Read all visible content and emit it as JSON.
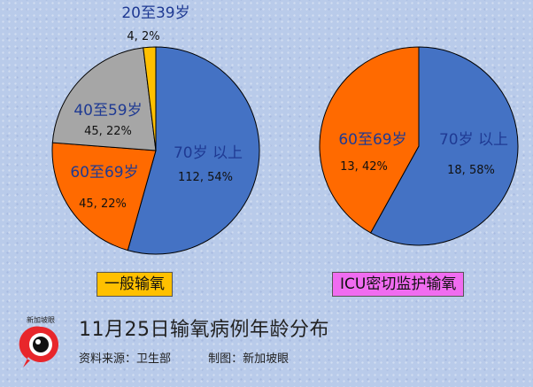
{
  "chart_data": [
    {
      "type": "pie",
      "title": "一般输氧",
      "slices": [
        {
          "label": "70岁 以上",
          "value": 112,
          "percent": "54%",
          "value_label": "112, 54%",
          "color": "#4472c4"
        },
        {
          "label": "60至69岁",
          "value": 45,
          "percent": "22%",
          "value_label": "45, 22%",
          "color": "#ff6a00"
        },
        {
          "label": "40至59岁",
          "value": 45,
          "percent": "22%",
          "value_label": "45, 22%",
          "color": "#a6a6a6"
        },
        {
          "label": "20至39岁",
          "value": 4,
          "percent": "2%",
          "value_label": "4, 2%",
          "color": "#ffc000"
        }
      ]
    },
    {
      "type": "pie",
      "title": "ICU密切监护输氧",
      "slices": [
        {
          "label": "70岁 以上",
          "value": 18,
          "percent": "58%",
          "value_label": "18, 58%",
          "color": "#4472c4"
        },
        {
          "label": "60至69岁",
          "value": 13,
          "percent": "42%",
          "value_label": "13, 42%",
          "color": "#ff6a00"
        }
      ]
    }
  ],
  "footer": {
    "title": "11月25日输氧病例年龄分布",
    "source": "资料来源：卫生部",
    "credit": "制图：新加坡眼",
    "logo_text": "新加坡眼"
  },
  "colors": {
    "label_text": "#1f3a93",
    "value_text": "#111111"
  }
}
